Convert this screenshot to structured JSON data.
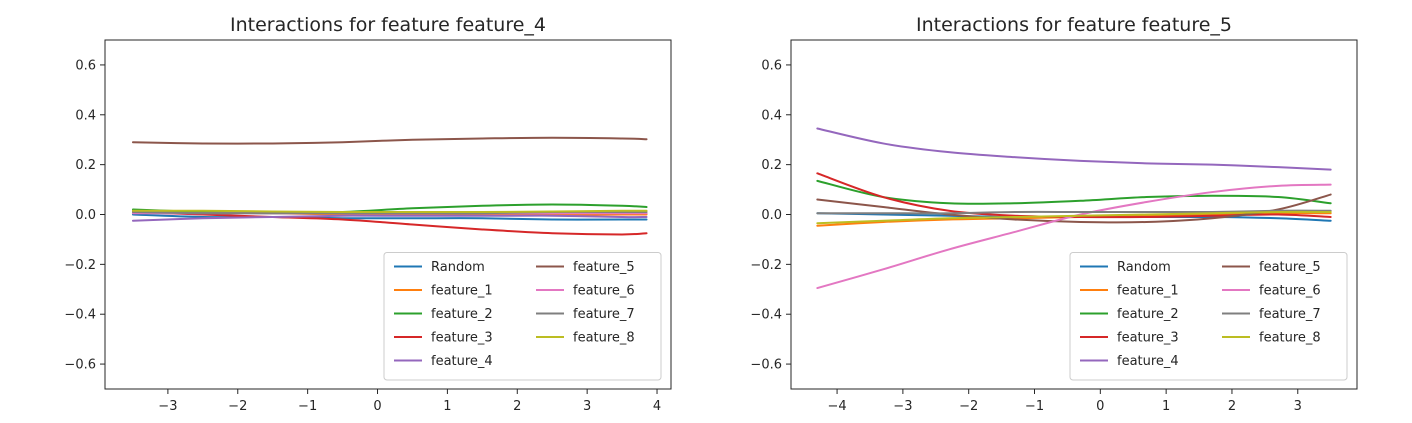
{
  "chart_data": [
    {
      "type": "line",
      "title": "Interactions for feature feature_4",
      "xlabel": "",
      "ylabel": "",
      "xlim": [
        -3.9,
        4.2
      ],
      "ylim": [
        -0.7,
        0.7
      ],
      "xticks": [
        -3,
        -2,
        -1,
        0,
        1,
        2,
        3,
        4
      ],
      "yticks": [
        -0.6,
        -0.4,
        -0.2,
        0.0,
        0.2,
        0.4,
        0.6
      ],
      "xtick_labels": [
        "−3",
        "−2",
        "−1",
        "0",
        "1",
        "2",
        "3",
        "4"
      ],
      "ytick_labels": [
        "−0.6",
        "−0.4",
        "−0.2",
        "0.0",
        "0.2",
        "0.4",
        "0.6"
      ],
      "grid": false,
      "legend": {
        "position": "bottom-right",
        "columns": 2
      },
      "x": [
        -3.5,
        -2.5,
        -1.5,
        -0.5,
        0.5,
        1.5,
        2.5,
        3.5,
        3.85
      ],
      "series": [
        {
          "name": "Random",
          "color": "#1f77b4",
          "values": [
            0.0,
            -0.01,
            -0.01,
            -0.015,
            -0.015,
            -0.015,
            -0.02,
            -0.02,
            -0.02
          ]
        },
        {
          "name": "feature_1",
          "color": "#ff7f0e",
          "values": [
            0.015,
            0.01,
            0.005,
            0.0,
            0.0,
            0.0,
            0.0,
            0.0,
            0.0
          ]
        },
        {
          "name": "feature_2",
          "color": "#2ca02c",
          "values": [
            0.02,
            0.01,
            0.005,
            0.01,
            0.025,
            0.035,
            0.04,
            0.035,
            0.03
          ]
        },
        {
          "name": "feature_3",
          "color": "#d62728",
          "values": [
            0.01,
            0.0,
            -0.01,
            -0.02,
            -0.04,
            -0.06,
            -0.075,
            -0.08,
            -0.075
          ]
        },
        {
          "name": "feature_4",
          "color": "#9467bd",
          "values": [
            -0.025,
            -0.015,
            -0.01,
            -0.005,
            -0.005,
            -0.005,
            -0.005,
            -0.01,
            -0.01
          ]
        },
        {
          "name": "feature_5",
          "color": "#8c564b",
          "values": [
            0.29,
            0.285,
            0.285,
            0.29,
            0.3,
            0.305,
            0.308,
            0.305,
            0.302
          ]
        },
        {
          "name": "feature_6",
          "color": "#e377c2",
          "values": [
            0.005,
            0.005,
            0.005,
            0.005,
            0.005,
            0.005,
            0.005,
            0.005,
            0.005
          ]
        },
        {
          "name": "feature_7",
          "color": "#7f7f7f",
          "values": [
            0.01,
            0.005,
            0.005,
            0.005,
            0.005,
            0.005,
            0.01,
            0.01,
            0.01
          ]
        },
        {
          "name": "feature_8",
          "color": "#bcbd22",
          "values": [
            0.015,
            0.015,
            0.012,
            0.01,
            0.01,
            0.01,
            0.012,
            0.015,
            0.015
          ]
        }
      ]
    },
    {
      "type": "line",
      "title": "Interactions for feature feature_5",
      "xlabel": "",
      "ylabel": "",
      "xlim": [
        -4.7,
        3.9
      ],
      "ylim": [
        -0.7,
        0.7
      ],
      "xticks": [
        -4,
        -3,
        -2,
        -1,
        0,
        1,
        2,
        3
      ],
      "yticks": [
        -0.6,
        -0.4,
        -0.2,
        0.0,
        0.2,
        0.4,
        0.6
      ],
      "xtick_labels": [
        "−4",
        "−3",
        "−2",
        "−1",
        "0",
        "1",
        "2",
        "3"
      ],
      "ytick_labels": [
        "−0.6",
        "−0.4",
        "−0.2",
        "0.0",
        "0.2",
        "0.4",
        "0.6"
      ],
      "grid": false,
      "legend": {
        "position": "bottom-right",
        "columns": 2
      },
      "x": [
        -4.3,
        -3.3,
        -2.3,
        -1.3,
        -0.3,
        0.7,
        1.7,
        2.7,
        3.5
      ],
      "series": [
        {
          "name": "Random",
          "color": "#1f77b4",
          "values": [
            0.005,
            0.0,
            -0.005,
            -0.01,
            -0.01,
            -0.01,
            -0.01,
            -0.015,
            -0.025
          ]
        },
        {
          "name": "feature_1",
          "color": "#ff7f0e",
          "values": [
            -0.045,
            -0.03,
            -0.02,
            -0.015,
            -0.01,
            -0.005,
            0.0,
            0.005,
            0.005
          ]
        },
        {
          "name": "feature_2",
          "color": "#2ca02c",
          "values": [
            0.135,
            0.07,
            0.045,
            0.045,
            0.055,
            0.07,
            0.075,
            0.07,
            0.045
          ]
        },
        {
          "name": "feature_3",
          "color": "#d62728",
          "values": [
            0.165,
            0.07,
            0.015,
            -0.005,
            -0.01,
            -0.01,
            -0.005,
            0.0,
            -0.01
          ]
        },
        {
          "name": "feature_4",
          "color": "#9467bd",
          "values": [
            0.345,
            0.285,
            0.25,
            0.23,
            0.215,
            0.205,
            0.2,
            0.19,
            0.18
          ]
        },
        {
          "name": "feature_5",
          "color": "#8c564b",
          "values": [
            0.06,
            0.03,
            0.0,
            -0.02,
            -0.03,
            -0.03,
            -0.015,
            0.02,
            0.08
          ]
        },
        {
          "name": "feature_6",
          "color": "#e377c2",
          "values": [
            -0.295,
            -0.22,
            -0.14,
            -0.07,
            0.0,
            0.05,
            0.09,
            0.115,
            0.12
          ]
        },
        {
          "name": "feature_7",
          "color": "#7f7f7f",
          "values": [
            0.005,
            0.005,
            0.005,
            0.01,
            0.01,
            0.01,
            0.01,
            0.015,
            0.015
          ]
        },
        {
          "name": "feature_8",
          "color": "#bcbd22",
          "values": [
            -0.035,
            -0.025,
            -0.015,
            -0.01,
            -0.005,
            0.0,
            0.005,
            0.01,
            0.01
          ]
        }
      ]
    }
  ]
}
